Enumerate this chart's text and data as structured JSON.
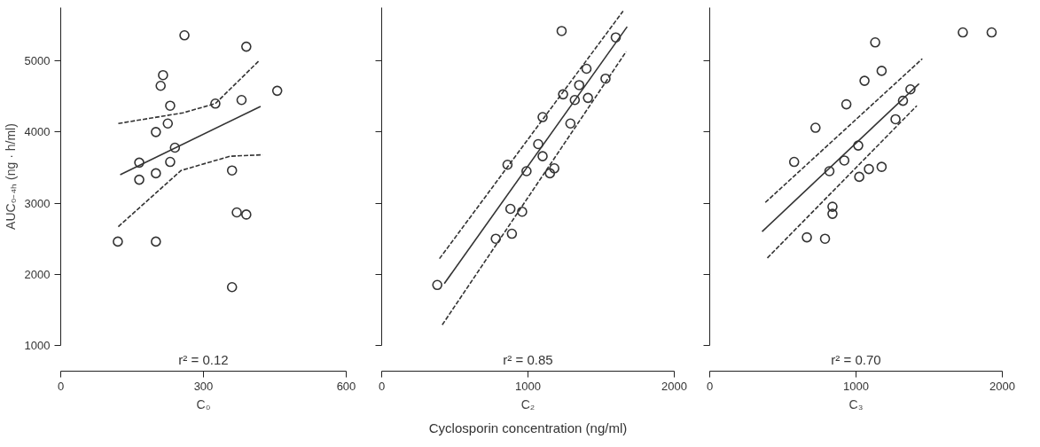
{
  "chart_data": [
    {
      "type": "scatter",
      "ylabel": "AUC₀₋₄ₕ (ng · h/ml)",
      "xlabel": "C₀",
      "annotations": [
        "r² = 0.12"
      ],
      "xlim": [
        0,
        600
      ],
      "xticks": [
        0,
        300,
        600
      ],
      "ylim": [
        1000,
        5750
      ],
      "yticks": [
        1000,
        2000,
        3000,
        4000,
        5000
      ],
      "series": [
        {
          "marker": "circle",
          "color": "#333333",
          "x": [
            260,
            390,
            215,
            210,
            455,
            325,
            380,
            230,
            225,
            200,
            240,
            230,
            165,
            200,
            165,
            360,
            370,
            390,
            120,
            200,
            360
          ],
          "values": [
            5360,
            5200,
            4800,
            4650,
            4580,
            4400,
            4450,
            4370,
            4120,
            4000,
            3780,
            3580,
            3570,
            3420,
            3330,
            3460,
            2870,
            2840,
            2460,
            2460,
            1820
          ]
        },
        {
          "type": "line",
          "line_style": "solid",
          "color": "#333333",
          "x": [
            125,
            420
          ],
          "values": [
            3400,
            4360
          ]
        },
        {
          "type": "line",
          "line_style": "dashed",
          "color": "#333333",
          "x": [
            121,
            257,
            325,
            418
          ],
          "values": [
            4120,
            4270,
            4400,
            5010
          ]
        },
        {
          "type": "line",
          "line_style": "dashed",
          "color": "#333333",
          "x": [
            121,
            253,
            356,
            424
          ],
          "values": [
            2670,
            3460,
            3660,
            3680
          ]
        }
      ]
    },
    {
      "type": "scatter",
      "xlabel": "C₂",
      "annotations": [
        "r² = 0.85",
        "Cyclosporin concentration (ng/ml)"
      ],
      "xlim": [
        0,
        2000
      ],
      "xticks": [
        0,
        1000,
        2000
      ],
      "ylim": [
        1000,
        5750
      ],
      "yticks": [
        1000,
        2000,
        3000,
        4000,
        5000
      ],
      "tick_labels": "x",
      "series": [
        {
          "marker": "circle",
          "color": "#333333",
          "x": [
            1230,
            1600,
            1400,
            1530,
            1350,
            1240,
            1410,
            1320,
            1100,
            1290,
            1070,
            1100,
            860,
            990,
            1150,
            1180,
            880,
            960,
            780,
            890,
            380
          ],
          "values": [
            5420,
            5330,
            4890,
            4750,
            4660,
            4530,
            4480,
            4450,
            4210,
            4120,
            3830,
            3660,
            3540,
            3450,
            3420,
            3490,
            2920,
            2880,
            2500,
            2570,
            1850
          ]
        },
        {
          "type": "line",
          "line_style": "solid",
          "color": "#333333",
          "x": [
            428,
            1678
          ],
          "values": [
            1870,
            5480
          ]
        },
        {
          "type": "line",
          "line_style": "dashed",
          "color": "#333333",
          "x": [
            395,
            1650
          ],
          "values": [
            2220,
            5700
          ]
        },
        {
          "type": "line",
          "line_style": "dashed",
          "color": "#333333",
          "x": [
            414,
            1671
          ],
          "values": [
            1290,
            5130
          ]
        }
      ]
    },
    {
      "type": "scatter",
      "xlabel": "C₃",
      "annotations": [
        "r² = 0.70"
      ],
      "xlim": [
        0,
        2000
      ],
      "xticks": [
        0,
        1000,
        2000
      ],
      "ylim": [
        1000,
        5750
      ],
      "yticks": [
        1000,
        2000,
        3000,
        4000,
        5000
      ],
      "tick_labels": "x",
      "series": [
        {
          "marker": "circle",
          "color": "#333333",
          "x": [
            1730,
            1927,
            1131,
            1175,
            1058,
            1372,
            1321,
            934,
            1270,
            723,
            1015,
            577,
            920,
            818,
            1088,
            1175,
            1022,
            839,
            839,
            664,
            788
          ],
          "values": [
            5400,
            5400,
            5260,
            4860,
            4720,
            4600,
            4440,
            4390,
            4180,
            4060,
            3810,
            3580,
            3600,
            3450,
            3480,
            3510,
            3370,
            2950,
            2850,
            2520,
            2500
          ]
        },
        {
          "type": "line",
          "line_style": "solid",
          "color": "#333333",
          "x": [
            358,
            1431
          ],
          "values": [
            2600,
            4680
          ]
        },
        {
          "type": "line",
          "line_style": "dashed",
          "color": "#333333",
          "x": [
            380,
            1453
          ],
          "values": [
            3010,
            5030
          ]
        },
        {
          "type": "line",
          "line_style": "dashed",
          "color": "#333333",
          "x": [
            394,
            1416
          ],
          "values": [
            2230,
            4370
          ]
        }
      ]
    }
  ]
}
